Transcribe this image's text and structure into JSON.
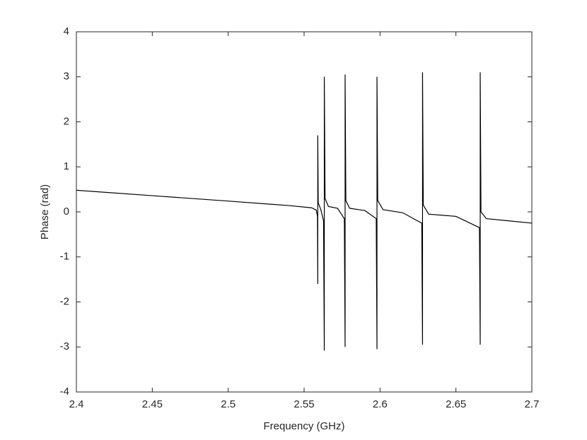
{
  "chart_data": {
    "type": "line",
    "x_label": "Frequency (GHz)",
    "y_label": "Phase (rad)",
    "xlim": [
      2.4,
      2.7
    ],
    "xticks": [
      2.4,
      2.45,
      2.5,
      2.55,
      2.6,
      2.65,
      2.7
    ],
    "ylim": [
      -4,
      4
    ],
    "yticks": [
      -4,
      -3,
      -2,
      -1,
      0,
      1,
      2,
      3,
      4
    ],
    "grid": false,
    "series": [
      {
        "color": "#000000",
        "x": [
          2.4,
          2.45,
          2.5,
          2.54,
          2.555,
          2.558,
          2.5588,
          2.559,
          2.559,
          2.5593,
          2.561,
          2.5628,
          2.5633,
          2.5633,
          2.5638,
          2.566,
          2.572,
          2.5765,
          2.577,
          2.577,
          2.5775,
          2.58,
          2.59,
          2.5975,
          2.598,
          2.598,
          2.5985,
          2.602,
          2.615,
          2.6275,
          2.628,
          2.628,
          2.6285,
          2.632,
          2.65,
          2.6655,
          2.666,
          2.666,
          2.6665,
          2.67,
          2.685,
          2.7
        ],
        "values": [
          0.48,
          0.36,
          0.24,
          0.14,
          0.09,
          0.04,
          -0.1,
          -1.6,
          1.7,
          0.2,
          0.05,
          -0.2,
          -3.08,
          3.0,
          0.3,
          0.12,
          0.08,
          -0.15,
          -3.0,
          3.05,
          0.25,
          0.08,
          0.03,
          -0.15,
          -3.05,
          3.0,
          0.25,
          0.05,
          -0.02,
          -0.25,
          -2.95,
          3.1,
          0.15,
          -0.05,
          -0.1,
          -0.35,
          -2.95,
          3.1,
          0.0,
          -0.15,
          -0.2,
          -0.25
        ]
      }
    ]
  }
}
